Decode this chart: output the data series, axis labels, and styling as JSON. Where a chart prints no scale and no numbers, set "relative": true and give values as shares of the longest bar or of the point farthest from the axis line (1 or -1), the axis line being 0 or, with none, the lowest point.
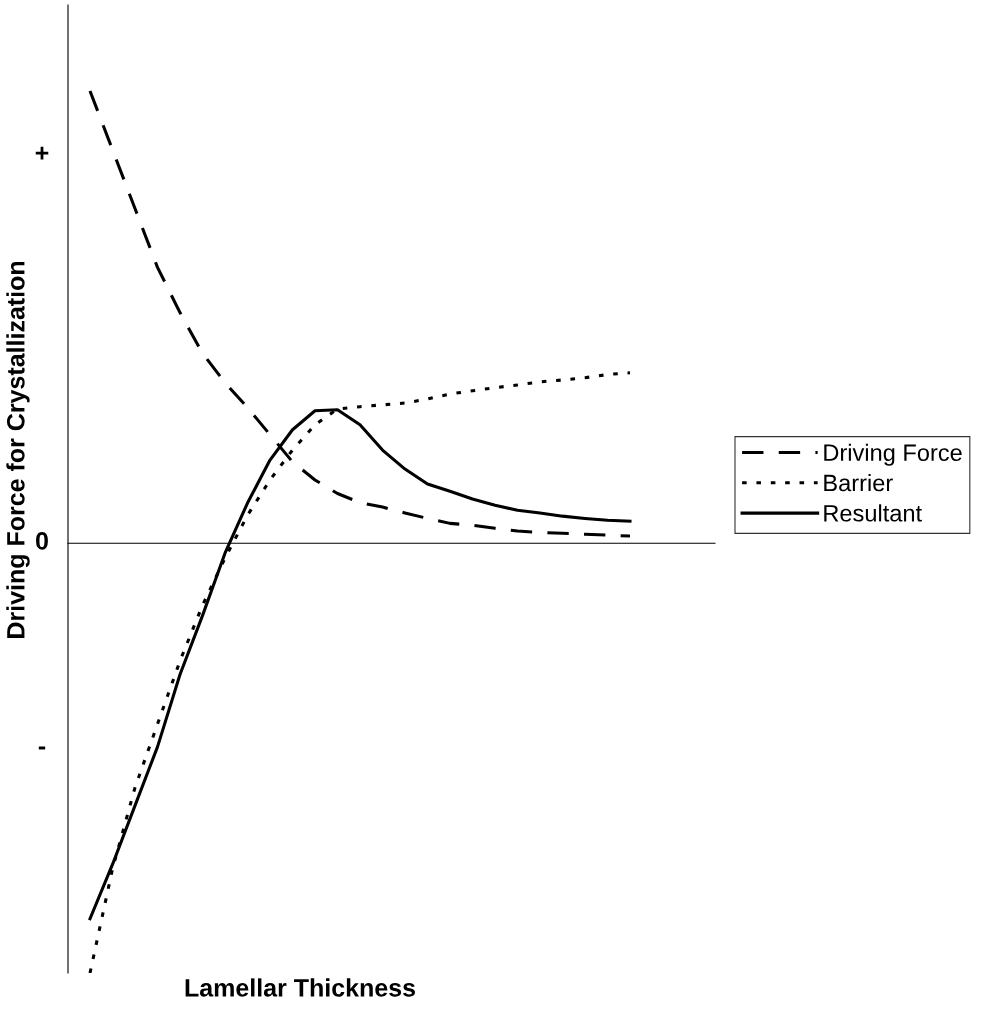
{
  "chart_data": {
    "type": "line",
    "relative": true,
    "xlabel": "Lamellar Thickness",
    "ylabel": "Driving Force for Crystallization",
    "categories": [
      null,
      null,
      null,
      null,
      null,
      null,
      null,
      null,
      null,
      null,
      null,
      null,
      null,
      null,
      null,
      null,
      null,
      null,
      null,
      null,
      null,
      null,
      null,
      null,
      null
    ],
    "annotations": [
      "+",
      "0",
      "-"
    ],
    "legend": "right",
    "marker": "none",
    "series": [
      {
        "name": "Driving Force",
        "color": "#000000",
        "line_style": "dashed",
        "values": [
          1.0,
          0.87,
          0.74,
          0.61,
          0.51,
          0.42,
          0.355,
          0.3,
          0.24,
          0.18,
          0.14,
          0.11,
          0.09,
          0.08,
          0.067,
          0.055,
          0.044,
          0.04,
          0.033,
          0.027,
          0.024,
          0.022,
          0.02,
          0.018,
          0.016
        ]
      },
      {
        "name": "Barrier",
        "color": "#000000",
        "line_style": "dotted",
        "values": [
          -0.95,
          -0.72,
          -0.54,
          -0.4,
          -0.26,
          -0.137,
          -0.033,
          0.062,
          0.14,
          0.206,
          0.262,
          0.297,
          0.302,
          0.306,
          0.31,
          0.319,
          0.33,
          0.337,
          0.344,
          0.35,
          0.357,
          0.361,
          0.366,
          0.373,
          0.377
        ]
      },
      {
        "name": "Resultant",
        "color": "#000000",
        "line_style": "solid",
        "values": [
          -0.83,
          -0.71,
          -0.58,
          -0.45,
          -0.29,
          -0.16,
          -0.022,
          0.089,
          0.184,
          0.251,
          0.293,
          0.295,
          0.262,
          0.206,
          0.164,
          0.131,
          0.115,
          0.098,
          0.084,
          0.073,
          0.067,
          0.06,
          0.055,
          0.051,
          0.049
        ]
      }
    ]
  }
}
